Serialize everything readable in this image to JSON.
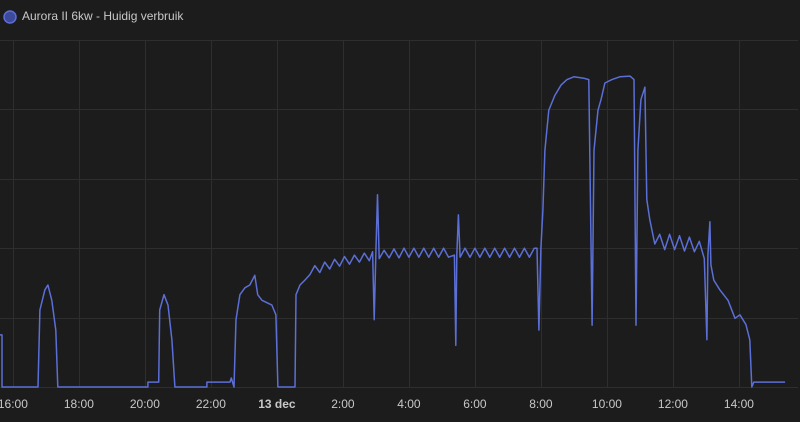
{
  "chart_data": {
    "type": "line",
    "series": [
      {
        "name": "Aurora II 6kw - Huidig verbruik",
        "color": "#5b6fd6",
        "legend_fill": "#3d4a9c",
        "values": [
          0.75,
          0.75,
          0,
          0,
          1.11,
          1.4,
          1.47,
          1.25,
          0.82,
          0,
          0,
          0.07,
          0.07,
          1.11,
          1.33,
          1.18,
          0.68,
          0,
          0,
          0.07,
          0.07,
          0.13,
          0,
          0.97,
          1.33,
          1.43,
          1.47,
          1.61,
          1.33,
          1.25,
          1.18,
          1.04,
          0,
          0,
          1.33,
          1.47,
          1.54,
          1.62,
          1.75,
          1.65,
          1.8,
          1.7,
          1.84,
          1.74,
          1.88,
          1.77,
          1.9,
          1.8,
          1.93,
          1.82,
          1.95,
          0.97,
          1.95,
          2.77,
          1.85,
          1.97,
          1.86,
          1.99,
          1.86,
          2.0,
          1.87,
          2.0,
          1.87,
          2.0,
          1.87,
          2.0,
          1.87,
          2.0,
          1.87,
          1.9,
          0.6,
          1.9,
          2.48,
          1.87,
          2.0,
          1.87,
          2.0,
          1.87,
          2.0,
          1.87,
          2.0,
          1.87,
          2.0,
          1.87,
          2.0,
          1.87,
          2.0,
          1.87,
          2.0,
          2.0,
          0.82,
          2.0,
          2.55,
          3.41,
          3.99,
          4.2,
          4.35,
          4.43,
          4.47,
          4.45,
          4.43,
          0.89,
          3.41,
          3.99,
          4.14,
          4.38,
          4.43,
          4.47,
          4.48,
          4.43,
          0.89,
          3.41,
          4.14,
          4.32,
          2.7,
          2.41,
          2.06,
          2.2,
          1.98,
          2.2,
          1.98,
          2.18,
          1.96,
          2.16,
          1.95,
          2.1,
          1.85,
          0.68,
          1.9,
          2.38,
          1.76,
          1.54,
          1.4,
          1.25,
          0.99,
          1.04,
          0.9,
          0.68,
          0,
          0.07,
          0.07
        ]
      }
    ],
    "x": [
      -0.39,
      -0.33,
      -0.33,
      0.76,
      0.82,
      0.97,
      1.06,
      1.18,
      1.3,
      1.36,
      4.09,
      4.09,
      4.42,
      4.45,
      4.58,
      4.7,
      4.82,
      4.91,
      5.88,
      5.88,
      6.58,
      6.62,
      6.7,
      6.76,
      6.88,
      7.03,
      7.18,
      7.33,
      7.42,
      7.55,
      7.85,
      7.97,
      8.03,
      8.55,
      8.58,
      8.7,
      8.85,
      9.0,
      9.15,
      9.3,
      9.45,
      9.6,
      9.75,
      9.9,
      10.05,
      10.2,
      10.35,
      10.5,
      10.65,
      10.8,
      10.9,
      10.95,
      11.0,
      11.05,
      11.1,
      11.25,
      11.4,
      11.55,
      11.7,
      11.85,
      12.0,
      12.15,
      12.3,
      12.45,
      12.6,
      12.75,
      12.9,
      13.05,
      13.2,
      13.38,
      13.42,
      13.45,
      13.5,
      13.55,
      13.7,
      13.85,
      14.0,
      14.15,
      14.3,
      14.45,
      14.6,
      14.75,
      14.9,
      15.05,
      15.2,
      15.35,
      15.5,
      15.65,
      15.8,
      15.88,
      15.94,
      16.0,
      16.06,
      16.12,
      16.24,
      16.42,
      16.61,
      16.79,
      17.0,
      17.3,
      17.45,
      17.55,
      17.61,
      17.73,
      17.82,
      17.94,
      18.15,
      18.39,
      18.7,
      18.82,
      18.88,
      18.94,
      19.03,
      19.15,
      19.21,
      19.3,
      19.45,
      19.6,
      19.75,
      19.9,
      20.05,
      20.2,
      20.35,
      20.5,
      20.65,
      20.8,
      20.95,
      21.03,
      21.06,
      21.12,
      21.15,
      21.24,
      21.42,
      21.67,
      21.88,
      22.03,
      22.21,
      22.33,
      22.39,
      22.45,
      23.4
    ],
    "xlim": [
      -0.39,
      23.79
    ],
    "xticks": [
      {
        "value": 0,
        "label": "16:00"
      },
      {
        "value": 2,
        "label": "18:00"
      },
      {
        "value": 4,
        "label": "20:00"
      },
      {
        "value": 6,
        "label": "22:00"
      },
      {
        "value": 8,
        "label": "13 dec"
      },
      {
        "value": 10,
        "label": "2:00"
      },
      {
        "value": 12,
        "label": "4:00"
      },
      {
        "value": 14,
        "label": "6:00"
      },
      {
        "value": 16,
        "label": "8:00"
      },
      {
        "value": 18,
        "label": "10:00"
      },
      {
        "value": 20,
        "label": "12:00"
      },
      {
        "value": 22,
        "label": "14:00"
      }
    ],
    "ylim": [
      0,
      5
    ],
    "yticks": [
      0,
      1,
      2,
      3,
      4,
      5
    ],
    "grid": true
  }
}
